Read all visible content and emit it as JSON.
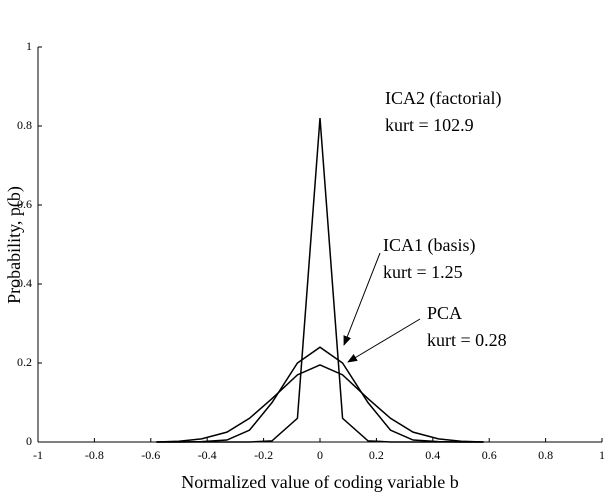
{
  "chart_data": {
    "type": "line",
    "xlabel": "Normalized value of coding variable b",
    "ylabel": "Probability, p(b)",
    "x": [
      -0.58,
      -0.5,
      -0.42,
      -0.33,
      -0.25,
      -0.17,
      -0.08,
      0,
      0.08,
      0.17,
      0.25,
      0.33,
      0.42,
      0.5,
      0.58
    ],
    "series": [
      {
        "name": "ICA2 (factorial)",
        "color": "#000000",
        "values": [
          0,
          0,
          0,
          0,
          0,
          0.003,
          0.06,
          0.82,
          0.06,
          0.003,
          0,
          0,
          0,
          0,
          0
        ]
      },
      {
        "name": "ICA1 (basis)",
        "color": "#000000",
        "values": [
          0,
          0,
          0.001,
          0.005,
          0.03,
          0.1,
          0.2,
          0.24,
          0.2,
          0.1,
          0.03,
          0.005,
          0.001,
          0,
          0
        ]
      },
      {
        "name": "PCA",
        "color": "#000000",
        "values": [
          0,
          0.002,
          0.008,
          0.025,
          0.06,
          0.11,
          0.17,
          0.195,
          0.17,
          0.11,
          0.06,
          0.025,
          0.008,
          0.002,
          0
        ]
      }
    ],
    "annotations": [
      "kurt = 102.9",
      "kurt = 1.25",
      "kurt = 0.28"
    ],
    "xlim": [
      -1,
      1
    ],
    "xticks": [
      -1,
      -0.8,
      -0.6,
      -0.4,
      -0.2,
      0,
      0.2,
      0.4,
      0.6,
      0.8,
      1
    ],
    "ylim": [
      0,
      1
    ],
    "yticks": [
      0,
      0.2,
      0.4,
      0.6,
      0.8,
      1
    ]
  }
}
